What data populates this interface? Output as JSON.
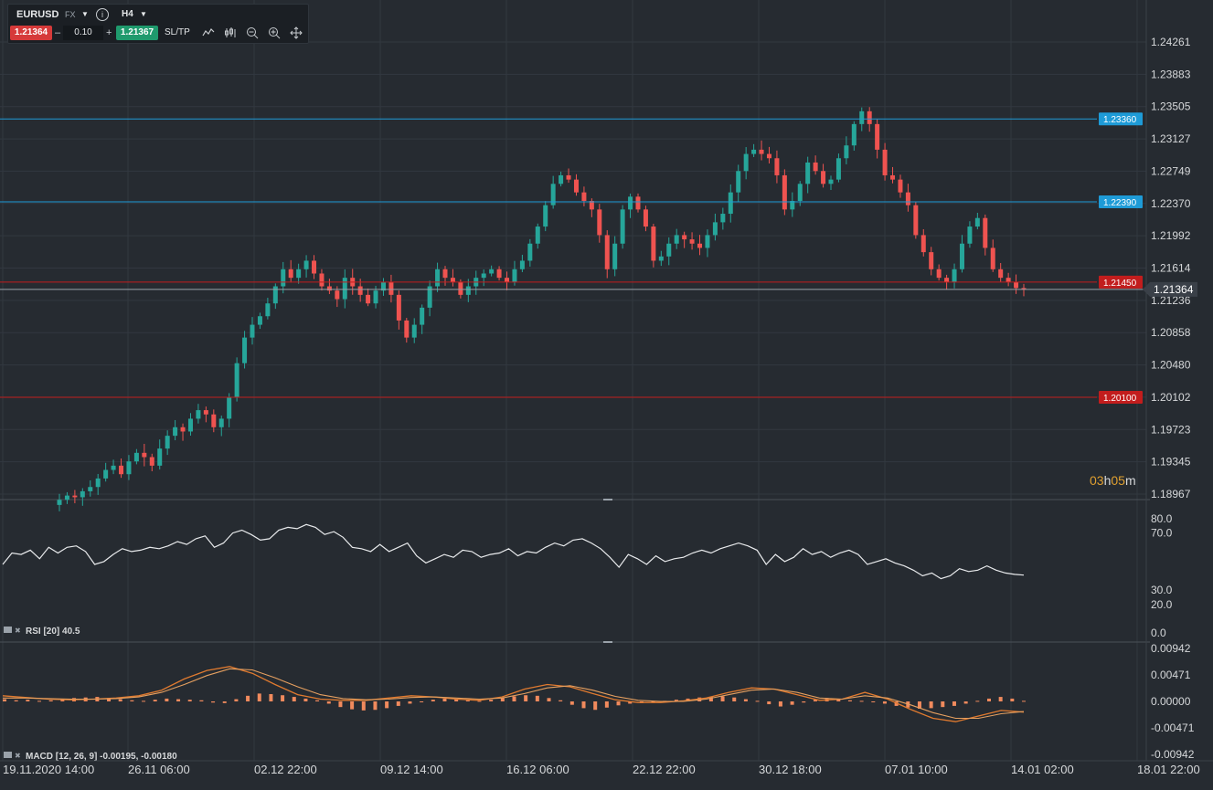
{
  "toolbar": {
    "symbol": "EURUSD",
    "market": "FX",
    "timeframe": "H4",
    "sell_price": "1.21364",
    "buy_price": "1.21367",
    "quantity": "0.10",
    "minus": "–",
    "plus": "+",
    "sltp": "SL/TP"
  },
  "price_axis": [
    "1.24261",
    "1.23883",
    "1.23505",
    "1.23127",
    "1.22749",
    "1.22370",
    "1.21992",
    "1.21614",
    "1.21236",
    "1.20858",
    "1.20480",
    "1.20102",
    "1.19723",
    "1.19345",
    "1.18967"
  ],
  "levels": [
    {
      "label": "1.23360",
      "color": "#1e9bd7",
      "kind": "resistance"
    },
    {
      "label": "1.22390",
      "color": "#1e9bd7",
      "kind": "resistance"
    },
    {
      "label": "1.21450",
      "color": "#c21d1d",
      "kind": "support"
    },
    {
      "label": "1.20100",
      "color": "#c21d1d",
      "kind": "support"
    }
  ],
  "current_price": "1.21364",
  "countdown": {
    "hours": "03",
    "h": "h",
    "minutes": "05",
    "m": "m"
  },
  "rsi": {
    "label": "RSI [20] 40.5",
    "axis": [
      "80.0",
      "70.0",
      "30.0",
      "20.0",
      "0.0"
    ]
  },
  "macd": {
    "label": "MACD [12, 26, 9] -0.00195, -0.00180",
    "axis": [
      "0.00942",
      "0.00471",
      "0.00000",
      "-0.00471",
      "-0.00942"
    ]
  },
  "time_axis": [
    "19.11.2020 14:00",
    "26.11 06:00",
    "02.12 22:00",
    "09.12 14:00",
    "16.12 06:00",
    "22.12 22:00",
    "30.12 18:00",
    "07.01 10:00",
    "14.01 02:00",
    "18.01 22:00"
  ],
  "colors": {
    "bull": "#26a69a",
    "bear": "#ef5350",
    "background": "#262b31",
    "countdown": "#e0a030"
  },
  "chart_data": {
    "type": "candlestick",
    "title": "EURUSD H4",
    "ylim": [
      1.18967,
      1.24261
    ],
    "close_series": [
      1.189,
      1.1895,
      1.1893,
      1.19,
      1.1905,
      1.1915,
      1.1925,
      1.193,
      1.192,
      1.1935,
      1.1945,
      1.194,
      1.193,
      1.195,
      1.1965,
      1.1975,
      1.197,
      1.1985,
      1.1995,
      1.199,
      1.1975,
      1.1985,
      1.201,
      1.205,
      1.208,
      1.2095,
      1.2105,
      1.212,
      1.214,
      1.216,
      1.215,
      1.216,
      1.217,
      1.2155,
      1.214,
      1.2135,
      1.2125,
      1.215,
      1.214,
      1.213,
      1.212,
      1.2135,
      1.2145,
      1.213,
      1.21,
      1.208,
      1.2095,
      1.2115,
      1.214,
      1.216,
      1.215,
      1.2145,
      1.213,
      1.214,
      1.215,
      1.2155,
      1.216,
      1.215,
      1.2145,
      1.216,
      1.217,
      1.219,
      1.221,
      1.2235,
      1.226,
      1.227,
      1.2265,
      1.225,
      1.224,
      1.223,
      1.22,
      1.216,
      1.219,
      1.223,
      1.2245,
      1.223,
      1.221,
      1.217,
      1.2175,
      1.219,
      1.22,
      1.2195,
      1.219,
      1.2185,
      1.22,
      1.2215,
      1.2225,
      1.225,
      1.2275,
      1.2295,
      1.23,
      1.2295,
      1.229,
      1.227,
      1.223,
      1.224,
      1.226,
      1.2285,
      1.2275,
      1.226,
      1.2265,
      1.229,
      1.2305,
      1.233,
      1.2345,
      1.233,
      1.23,
      1.227,
      1.2265,
      1.225,
      1.2235,
      1.22,
      1.218,
      1.216,
      1.215,
      1.2145,
      1.216,
      1.219,
      1.221,
      1.222,
      1.2185,
      1.216,
      1.215,
      1.2145,
      1.2138,
      1.21364
    ],
    "rsi_series": [
      48,
      56,
      55,
      58,
      52,
      60,
      56,
      60,
      61,
      57,
      48,
      50,
      55,
      59,
      57,
      58,
      60,
      59,
      61,
      64,
      62,
      66,
      68,
      60,
      63,
      70,
      72,
      69,
      65,
      66,
      72,
      74,
      73,
      76,
      74,
      69,
      71,
      67,
      60,
      59,
      57,
      62,
      57,
      60,
      63,
      54,
      49,
      52,
      55,
      53,
      58,
      57,
      53,
      55,
      56,
      59,
      54,
      57,
      56,
      60,
      63,
      61,
      65,
      66,
      63,
      59,
      53,
      46,
      55,
      52,
      48,
      54,
      50,
      52,
      53,
      56,
      58,
      56,
      59,
      61,
      63,
      61,
      58,
      48,
      55,
      50,
      53,
      59,
      55,
      57,
      53,
      56,
      58,
      55,
      48,
      50,
      52,
      49,
      47,
      44,
      40,
      42,
      38,
      40,
      45,
      43,
      44,
      47,
      44,
      42,
      41,
      40.5
    ],
    "macd_hist": [
      0.0004,
      0.0002,
      0.0003,
      0.0001,
      0.0002,
      0.0004,
      0.0006,
      0.0007,
      0.0008,
      0.0006,
      0.0004,
      0.0002,
      0.0001,
      0.0003,
      0.0005,
      0.0004,
      0.0003,
      0.0002,
      -0.0002,
      -0.0003,
      0.0004,
      0.001,
      0.0014,
      0.0013,
      0.0011,
      0.0008,
      0.0005,
      0.0002,
      -0.0004,
      -0.001,
      -0.0014,
      -0.0016,
      -0.0015,
      -0.0012,
      -0.0008,
      -0.0004,
      -0.0001,
      0.0003,
      0.0005,
      0.0004,
      0.0002,
      0.0001,
      0.0003,
      0.0006,
      0.0009,
      0.0011,
      0.001,
      0.0006,
      0.0002,
      -0.0006,
      -0.0012,
      -0.0015,
      -0.0011,
      -0.0007,
      -0.0004,
      -0.0003,
      -0.0002,
      0.0001,
      0.0003,
      0.0005,
      0.0007,
      0.0008,
      0.0009,
      0.0007,
      0.0004,
      0.0001,
      -0.0005,
      -0.0009,
      -0.0006,
      -0.0002,
      0.0003,
      0.0006,
      0.0004,
      0.0002,
      0.0001,
      -0.0001,
      -0.0004,
      -0.0008,
      -0.0011,
      -0.0013,
      -0.0012,
      -0.001,
      -0.0008,
      -0.0004,
      0.0001,
      0.0005,
      0.0008,
      0.0005,
      0.0001
    ],
    "macd_line": [
      0.001,
      0.0007,
      0.0004,
      0.0003,
      0.0004,
      0.0006,
      0.001,
      0.002,
      0.004,
      0.0055,
      0.0062,
      0.005,
      0.003,
      0.0012,
      0.0004,
      0.0002,
      0.0002,
      0.0006,
      0.001,
      0.0008,
      0.0004,
      0.0002,
      0.0008,
      0.0022,
      0.003,
      0.0026,
      0.0014,
      0.0003,
      -0.0002,
      -0.0002,
      0.0001,
      0.0006,
      0.0016,
      0.0024,
      0.0022,
      0.0012,
      0.0002,
      0.0004,
      0.0016,
      0.0004,
      -0.0014,
      -0.003,
      -0.0036,
      -0.0026,
      -0.0016,
      -0.0019
    ],
    "signal_line": [
      0.0006,
      0.0006,
      0.0005,
      0.0004,
      0.0004,
      0.0005,
      0.0008,
      0.0016,
      0.003,
      0.0046,
      0.0058,
      0.0056,
      0.0042,
      0.0026,
      0.0012,
      0.0005,
      0.0003,
      0.0004,
      0.0007,
      0.0008,
      0.0006,
      0.0004,
      0.0006,
      0.0014,
      0.0024,
      0.0028,
      0.002,
      0.0009,
      0.0002,
      0.0,
      0.0,
      0.0004,
      0.0012,
      0.002,
      0.0022,
      0.0016,
      0.0006,
      0.0004,
      0.001,
      0.0006,
      -0.0006,
      -0.002,
      -0.003,
      -0.003,
      -0.0022,
      -0.0018
    ]
  }
}
